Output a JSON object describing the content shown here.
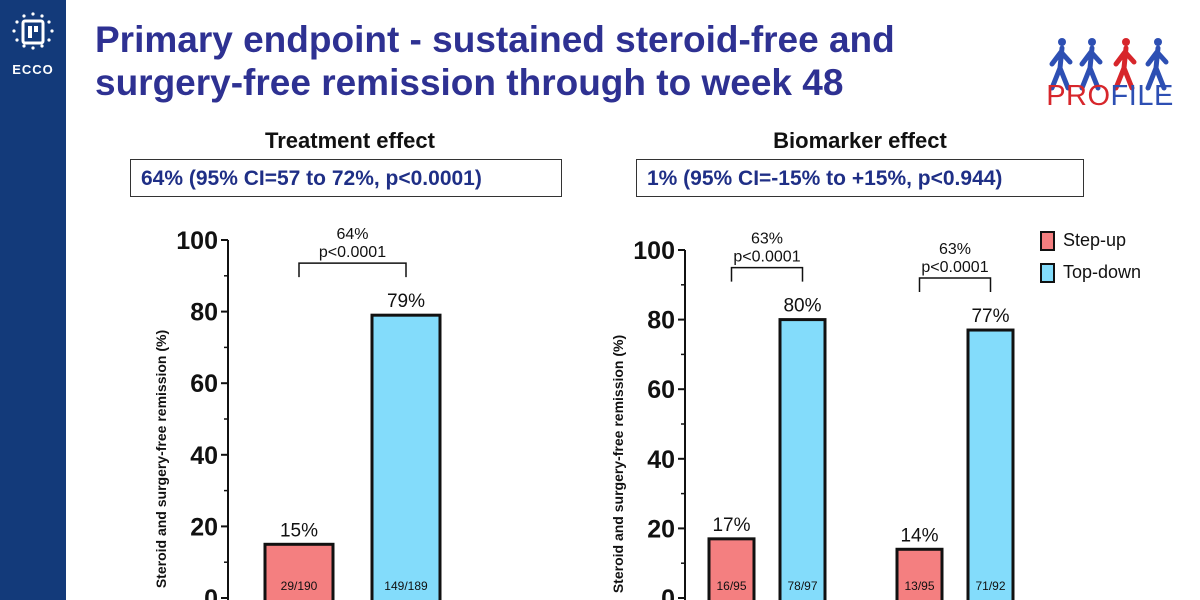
{
  "header": {
    "title_line1": "Primary endpoint - sustained steroid-free and",
    "title_line2": "surgery-free remission through to week 48"
  },
  "logos": {
    "ecco_text": "ECCO",
    "profile_text_pro": "PRO",
    "profile_text_file": "FILE"
  },
  "colors": {
    "sidebar": "#133a7a",
    "title": "#2e3192",
    "step_up": "#f47f80",
    "top_down": "#83dcfb",
    "profile_red": "#d7262b",
    "profile_blue": "#2d4fb3"
  },
  "panels": {
    "treatment": {
      "heading": "Treatment effect",
      "effect": "64% (95% CI=57 to 72%, p<0.0001)"
    },
    "biomarker": {
      "heading": "Biomarker effect",
      "effect": "1% (95% CI=-15% to +15%, p<0.944)"
    }
  },
  "legend": {
    "step_up": "Step-up",
    "top_down": "Top-down"
  },
  "chart_data": [
    {
      "type": "bar",
      "ylabel": "Steroid and surgery-free remission (%)",
      "ylim": [
        0,
        100
      ],
      "yticks": [
        "0",
        "20",
        "40",
        "60",
        "80",
        "100"
      ],
      "series": [
        {
          "name": "Step-up",
          "values": [
            15
          ],
          "labels": [
            "15%"
          ],
          "counts": [
            "29/190"
          ]
        },
        {
          "name": "Top-down",
          "values": [
            79
          ],
          "labels": [
            "79%"
          ],
          "counts": [
            "149/189"
          ]
        }
      ],
      "comparisons": [
        {
          "diff": "64%",
          "p": "p<0.0001"
        }
      ]
    },
    {
      "type": "bar",
      "ylabel": "Steroid and surgery-free remission (%)",
      "ylim": [
        0,
        100
      ],
      "yticks": [
        "0",
        "20",
        "40",
        "60",
        "80",
        "100"
      ],
      "series": [
        {
          "name": "Step-up",
          "values": [
            17,
            14
          ],
          "labels": [
            "17%",
            "14%"
          ],
          "counts": [
            "16/95",
            "13/95"
          ]
        },
        {
          "name": "Top-down",
          "values": [
            80,
            77
          ],
          "labels": [
            "80%",
            "77%"
          ],
          "counts": [
            "78/97",
            "71/92"
          ]
        }
      ],
      "comparisons": [
        {
          "diff": "63%",
          "p": "p<0.0001"
        },
        {
          "diff": "63%",
          "p": "p<0.0001"
        }
      ]
    }
  ]
}
